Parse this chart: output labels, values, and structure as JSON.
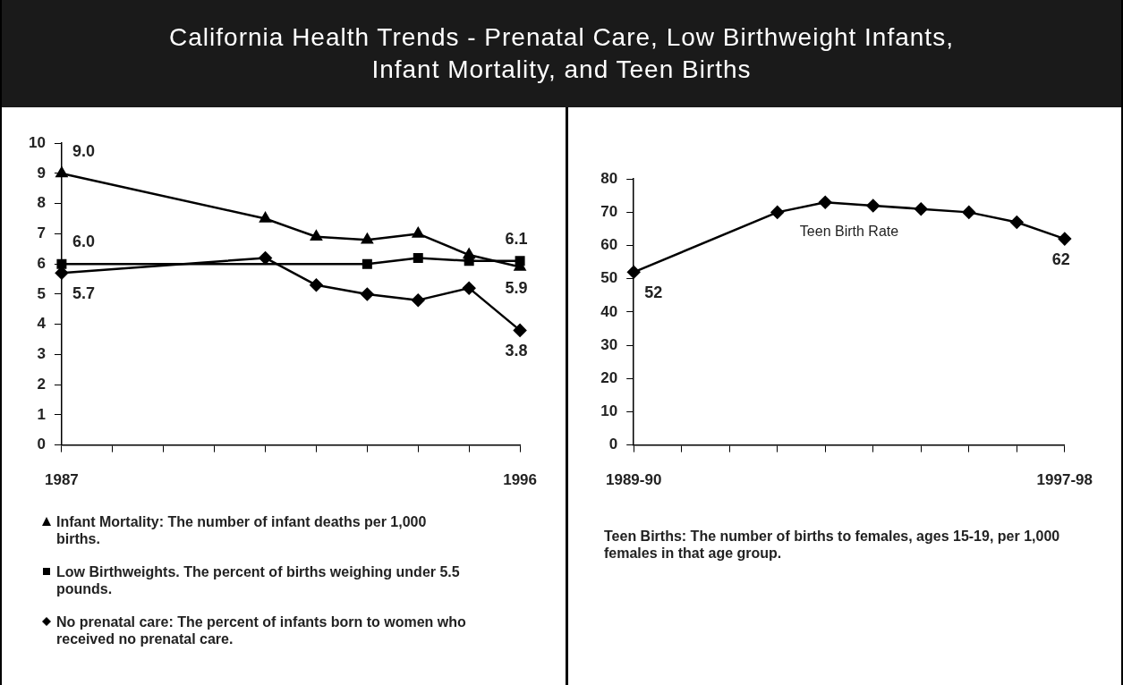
{
  "chart_data": [
    {
      "type": "line",
      "title": "California Health Trends - Prenatal Care, Low Birthweight Infants,\nInfant Mortality, and Teen Births",
      "categories": [
        "1987",
        null,
        null,
        null,
        null,
        null,
        null,
        null,
        null,
        "1996"
      ],
      "ylim": [
        0,
        10
      ],
      "yticks": [
        0,
        1,
        2,
        3,
        4,
        5,
        6,
        7,
        8,
        9,
        10
      ],
      "grid": false,
      "legend": "bottom",
      "series": [
        {
          "name": "Infant Mortality: The number of infant deaths per 1,000 births.",
          "color": "#000000",
          "marker": "triangle",
          "values": [
            9.0,
            null,
            null,
            null,
            7.5,
            6.9,
            6.8,
            7.0,
            6.3,
            5.9
          ],
          "value_labels": [
            "9.0",
            null,
            null,
            null,
            null,
            null,
            null,
            null,
            null,
            "5.9"
          ]
        },
        {
          "name": "Low Birthweights.  The percent of births weighing under 5.5 pounds.",
          "color": "#000000",
          "marker": "square",
          "values": [
            6.0,
            null,
            null,
            null,
            null,
            null,
            6.0,
            6.2,
            6.1,
            6.1
          ],
          "value_labels": [
            "6.0",
            null,
            null,
            null,
            null,
            null,
            null,
            null,
            null,
            "6.1"
          ]
        },
        {
          "name": "No prenatal care: The percent of infants born to women who received no prenatal care.",
          "color": "#000000",
          "marker": "diamond",
          "values": [
            5.7,
            null,
            null,
            null,
            6.2,
            5.3,
            5.0,
            4.8,
            5.2,
            3.8
          ],
          "value_labels": [
            "5.7",
            null,
            null,
            null,
            null,
            null,
            null,
            null,
            null,
            "3.8"
          ]
        }
      ]
    },
    {
      "type": "line",
      "categories": [
        "1989-90",
        null,
        null,
        null,
        null,
        null,
        null,
        null,
        null,
        "1997-98"
      ],
      "ylim": [
        0,
        80
      ],
      "yticks": [
        0,
        10,
        20,
        30,
        40,
        50,
        60,
        70,
        80
      ],
      "grid": false,
      "legend": false,
      "annotations": [
        "Teen Births: The number of births to females, ages 15-19, per 1,000 females in that age group."
      ],
      "series": [
        {
          "name": "Teen Birth Rate",
          "color": "#000000",
          "marker": "diamond",
          "values": [
            52,
            null,
            null,
            70,
            73,
            72,
            71,
            70,
            67,
            62
          ],
          "value_labels": [
            "52",
            null,
            null,
            null,
            null,
            null,
            null,
            null,
            null,
            "62"
          ]
        }
      ]
    }
  ]
}
